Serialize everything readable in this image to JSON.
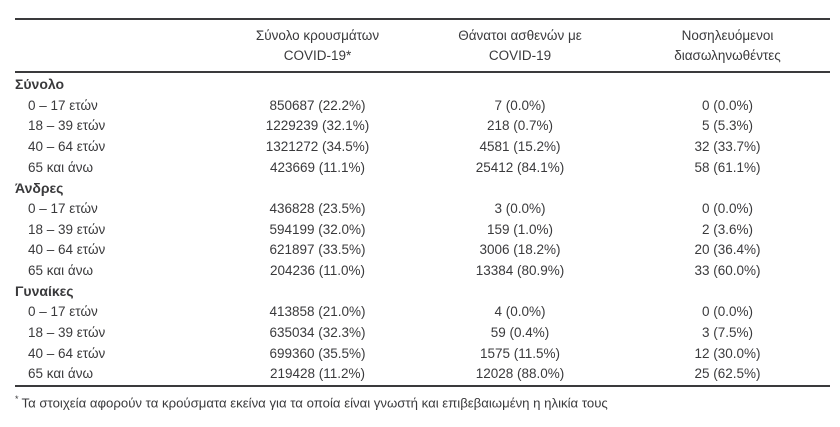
{
  "table": {
    "columns": [
      {
        "line1": "Σύνολο κρουσμάτων",
        "line2": "COVID-19*"
      },
      {
        "line1": "Θάνατοι ασθενών με",
        "line2": "COVID-19"
      },
      {
        "line1": "Νοσηλευόμενοι",
        "line2": "διασωληνωθέντες"
      }
    ],
    "groups": [
      {
        "label": "Σύνολο",
        "rows": [
          {
            "label": "0 – 17 ετών",
            "cases": "850687 (22.2%)",
            "deaths": "7 (0.0%)",
            "intubated": "0 (0.0%)"
          },
          {
            "label": "18 – 39 ετών",
            "cases": "1229239 (32.1%)",
            "deaths": "218 (0.7%)",
            "intubated": "5 (5.3%)"
          },
          {
            "label": "40 – 64 ετών",
            "cases": "1321272 (34.5%)",
            "deaths": "4581 (15.2%)",
            "intubated": "32 (33.7%)"
          },
          {
            "label": "65 και άνω",
            "cases": "423669 (11.1%)",
            "deaths": "25412 (84.1%)",
            "intubated": "58 (61.1%)"
          }
        ]
      },
      {
        "label": "Άνδρες",
        "rows": [
          {
            "label": "0 – 17 ετών",
            "cases": "436828 (23.5%)",
            "deaths": "3 (0.0%)",
            "intubated": "0 (0.0%)"
          },
          {
            "label": "18 – 39 ετών",
            "cases": "594199 (32.0%)",
            "deaths": "159 (1.0%)",
            "intubated": "2 (3.6%)"
          },
          {
            "label": "40 – 64 ετών",
            "cases": "621897 (33.5%)",
            "deaths": "3006 (18.2%)",
            "intubated": "20 (36.4%)"
          },
          {
            "label": "65 και άνω",
            "cases": "204236 (11.0%)",
            "deaths": "13384 (80.9%)",
            "intubated": "33 (60.0%)"
          }
        ]
      },
      {
        "label": "Γυναίκες",
        "rows": [
          {
            "label": "0 – 17 ετών",
            "cases": "413858 (21.0%)",
            "deaths": "4 (0.0%)",
            "intubated": "0 (0.0%)"
          },
          {
            "label": "18 – 39 ετών",
            "cases": "635034 (32.3%)",
            "deaths": "59 (0.4%)",
            "intubated": "3 (7.5%)"
          },
          {
            "label": "40 – 64 ετών",
            "cases": "699360 (35.5%)",
            "deaths": "1575 (11.5%)",
            "intubated": "12 (30.0%)"
          },
          {
            "label": "65 και άνω",
            "cases": "219428 (11.2%)",
            "deaths": "12028 (88.0%)",
            "intubated": "25 (62.5%)"
          }
        ]
      }
    ],
    "footnote_marker": "*",
    "footnote": "Τα στοιχεία αφορούν τα κρούσματα εκείνα για τα οποία είναι γνωστή και επιβεβαιωμένη η ηλικία τους"
  },
  "colors": {
    "text": "#3a3a3c",
    "rule": "#3a3a3c",
    "background": "#ffffff"
  }
}
